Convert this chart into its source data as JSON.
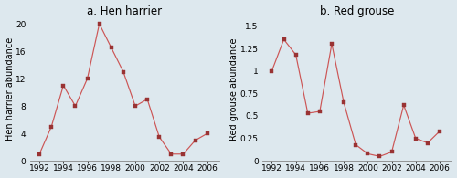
{
  "hen_harrier": {
    "title": "a. Hen harrier",
    "ylabel": "Hen harrier abundance",
    "years": [
      1992,
      1993,
      1994,
      1995,
      1996,
      1997,
      1998,
      1999,
      2000,
      2001,
      2002,
      2003,
      2004,
      2005,
      2006
    ],
    "values": [
      1,
      5,
      11,
      8,
      12,
      20,
      16.5,
      13,
      8,
      9,
      3.5,
      1,
      1,
      3,
      4
    ],
    "ylim": [
      0,
      21
    ],
    "yticks": [
      0,
      4,
      8,
      12,
      16,
      20
    ],
    "yticklabels": [
      "0",
      "4",
      "8",
      "12",
      "16",
      "20"
    ]
  },
  "red_grouse": {
    "title": "b. Red grouse",
    "ylabel": "Red grouse abundance",
    "years": [
      1992,
      1993,
      1994,
      1995,
      1996,
      1997,
      1998,
      1999,
      2000,
      2001,
      2002,
      2003,
      2004,
      2005,
      2006
    ],
    "values": [
      1.0,
      1.35,
      1.18,
      0.53,
      0.55,
      1.3,
      0.65,
      0.18,
      0.08,
      0.05,
      0.1,
      0.62,
      0.25,
      0.2,
      0.33
    ],
    "ylim": [
      0,
      1.6
    ],
    "yticks": [
      0,
      0.25,
      0.5,
      0.75,
      1.0,
      1.25,
      1.5
    ],
    "yticklabels": [
      "0",
      "0.25",
      "0.5",
      "0.75",
      "1",
      "1.25",
      "1.5"
    ]
  },
  "line_color": "#cc5555",
  "marker_color": "#993333",
  "bg_color": "#dde8ee",
  "xticks": [
    1992,
    1994,
    1996,
    1998,
    2000,
    2002,
    2004,
    2006
  ],
  "xticklabels": [
    "1992",
    "1994",
    "1996",
    "1998",
    "2000",
    "2002",
    "2004",
    "2006"
  ],
  "title_fontsize": 8.5,
  "label_fontsize": 7,
  "tick_fontsize": 6.5
}
